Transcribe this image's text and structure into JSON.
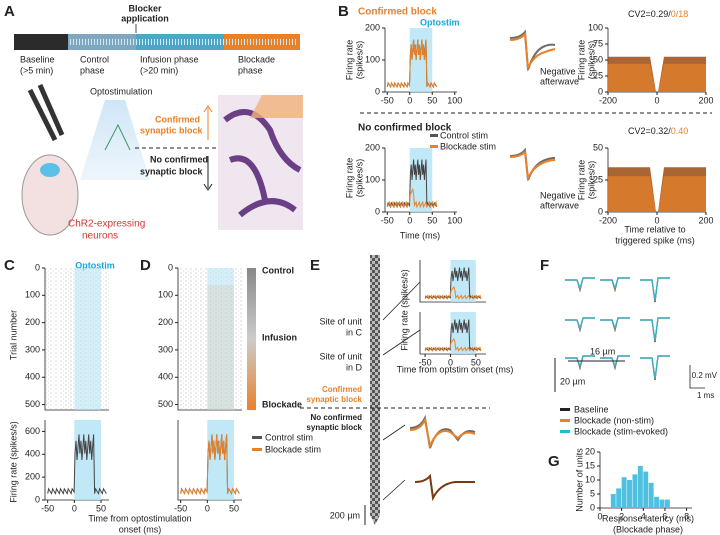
{
  "panels": {
    "A": {
      "label": "A",
      "blocker": [
        "Blocker",
        "application"
      ],
      "timeline": [
        "Baseline",
        "(>5 min)",
        "Control",
        "phase",
        "Infusion phase",
        "(>20 min)",
        "Blockade",
        "phase"
      ],
      "opto": "Optostimulation",
      "confirmed": [
        "Confirmed",
        "synaptic block"
      ],
      "not_confirmed": [
        "No confirmed",
        "synaptic block"
      ],
      "neurons": [
        "ChR2-expressing",
        "neurons"
      ]
    },
    "B": {
      "label": "B",
      "confirmed": "Confirmed block",
      "not_confirmed": "No confirmed block",
      "optostim": "Optostim",
      "ylabel": [
        "Firing rate",
        "(spikes/s)"
      ],
      "xlabel": "Time (ms)",
      "afterwave": [
        "Negative",
        "afterwave"
      ],
      "legend": [
        "Control stim",
        "Blockade stim"
      ],
      "cv_top": [
        "CV2=0.29/",
        "0/18"
      ],
      "cv_bottom": [
        "CV2=0.32/",
        "0.40"
      ],
      "cv_xlabel": [
        "Time relative to",
        "triggered spike (ms)"
      ],
      "psth_top": {
        "xlim": [
          -55,
          105
        ],
        "xticks": [
          -50,
          0,
          50,
          100
        ],
        "ylim": [
          0,
          200
        ],
        "yticks": [
          0,
          100,
          200
        ]
      },
      "psth_bottom": {
        "xlim": [
          -55,
          105
        ],
        "xticks": [
          -50,
          0,
          50,
          100
        ],
        "ylim": [
          0,
          200
        ],
        "yticks": [
          0,
          100,
          200
        ]
      },
      "acg_top": {
        "xlim": [
          -200,
          200
        ],
        "xticks": [
          -200,
          0,
          200
        ],
        "ylim": [
          0,
          100
        ],
        "yticks": [
          0,
          25,
          50,
          75,
          100
        ]
      },
      "acg_bottom": {
        "xlim": [
          -200,
          200
        ],
        "xticks": [
          -200,
          0,
          200
        ],
        "ylim": [
          0,
          50
        ],
        "yticks": [
          0,
          25,
          50
        ]
      }
    },
    "C": {
      "label": "C",
      "optostim": "Optostim",
      "raster_ylabel": "Trial number",
      "psth_ylabel": "Firing rate (spikes/s)",
      "raster": {
        "xlim": [
          -55,
          65
        ],
        "ylim": [
          520,
          0
        ],
        "yticks": [
          0,
          100,
          200,
          300,
          400,
          500
        ]
      },
      "psth": {
        "xlim": [
          -55,
          65
        ],
        "xticks": [
          -50,
          0,
          50
        ],
        "ylim": [
          0,
          700
        ],
        "yticks": [
          0,
          200,
          400,
          600
        ]
      }
    },
    "D": {
      "label": "D",
      "phases": [
        "Control",
        "Infusion",
        "Blockade"
      ],
      "legend": [
        "Control stim",
        "Blockade stim"
      ],
      "xlabel": [
        "Time from optostimulation",
        "onset (ms)"
      ],
      "raster": {
        "xlim": [
          -55,
          65
        ],
        "ylim": [
          520,
          0
        ],
        "yticks": [
          0,
          100,
          200,
          300,
          400,
          500
        ]
      },
      "psth": {
        "xlim": [
          -55,
          65
        ],
        "xticks": [
          -50,
          0,
          50
        ],
        "ylim": [
          0,
          700
        ]
      }
    },
    "E": {
      "label": "E",
      "site_c": [
        "Site of unit",
        "in C"
      ],
      "site_d": [
        "Site of unit",
        "in D"
      ],
      "confirmed": [
        "Confirmed",
        "synaptic block"
      ],
      "not_confirmed": [
        "No confirmed",
        "synaptic block"
      ],
      "ylabel": "Firing rate (spikes/s)",
      "xlabel": "Time from optstim onset (ms)",
      "scale": "200 µm",
      "psth_top": {
        "xlim": [
          -60,
          70
        ],
        "ylim": [
          0,
          300
        ]
      },
      "psth_bottom": {
        "xlim": [
          -60,
          70
        ],
        "xticks": [
          -50,
          0,
          50
        ],
        "ylim": [
          0,
          300
        ]
      }
    },
    "F": {
      "label": "F",
      "scale_y": "20 µm",
      "scale_x": "16 µm",
      "volt": "0.2 mV",
      "time": "1 ms",
      "legend": [
        {
          "name": "Baseline",
          "color": "#222222"
        },
        {
          "name": "Blockade (non-stim)",
          "color": "#e8822a"
        },
        {
          "name": "Blockade (stim-evoked)",
          "color": "#27b7d9"
        }
      ]
    },
    "G": {
      "label": "G",
      "ylabel": "Number of units",
      "xlabel": [
        "Response latency (ms)",
        "(Blockade phase)"
      ],
      "color": "#4fc1e0",
      "bins": [
        1,
        1.5,
        2,
        2.5,
        3,
        3.5,
        4,
        4.5,
        5,
        5.5,
        6,
        6.5
      ],
      "counts": [
        5,
        7,
        11,
        10,
        12,
        15,
        13,
        9,
        4,
        3,
        3
      ],
      "xlim": [
        0,
        8.5
      ],
      "xticks": [
        0,
        2,
        4,
        6,
        8
      ],
      "ylim": [
        0,
        20
      ],
      "yticks": [
        0,
        5,
        10,
        15,
        20
      ]
    }
  }
}
